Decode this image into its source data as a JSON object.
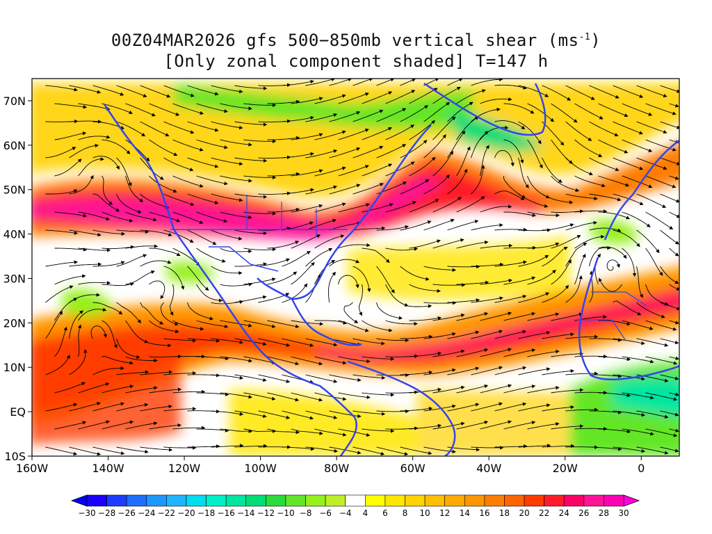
{
  "title": {
    "line1_prefix": "00Z04MAR2026 gfs 500−850mb vertical shear (ms",
    "line1_sup": "-1",
    "line1_suffix": ")",
    "line2": "[Only zonal component shaded] T=147 h"
  },
  "map": {
    "lon_range": [
      -160,
      10
    ],
    "lat_range": [
      -10,
      75
    ],
    "coastline_color": "#3344ee",
    "streamline_color": "#000000"
  },
  "axes": {
    "x_ticks": [
      {
        "lon": -160,
        "label": "160W"
      },
      {
        "lon": -140,
        "label": "140W"
      },
      {
        "lon": -120,
        "label": "120W"
      },
      {
        "lon": -100,
        "label": "100W"
      },
      {
        "lon": -80,
        "label": "80W"
      },
      {
        "lon": -60,
        "label": "60W"
      },
      {
        "lon": -40,
        "label": "40W"
      },
      {
        "lon": -20,
        "label": "20W"
      },
      {
        "lon": 0,
        "label": "0"
      }
    ],
    "y_ticks": [
      {
        "lat": 70,
        "label": "70N"
      },
      {
        "lat": 60,
        "label": "60N"
      },
      {
        "lat": 50,
        "label": "50N"
      },
      {
        "lat": 40,
        "label": "40N"
      },
      {
        "lat": 30,
        "label": "30N"
      },
      {
        "lat": 20,
        "label": "20N"
      },
      {
        "lat": 10,
        "label": "10N"
      },
      {
        "lat": 0,
        "label": "EQ"
      },
      {
        "lat": -10,
        "label": "10S"
      }
    ]
  },
  "colorbar": {
    "labels": [
      "-30",
      "-28",
      "-26",
      "-24",
      "-22",
      "-20",
      "-18",
      "-16",
      "-14",
      "-12",
      "-10",
      "-8",
      "-6",
      "-4",
      "4",
      "6",
      "8",
      "10",
      "12",
      "14",
      "16",
      "18",
      "20",
      "22",
      "24",
      "26",
      "28",
      "30"
    ],
    "colors": [
      "#1a00ff",
      "#1e3cff",
      "#1e6eff",
      "#1e96ff",
      "#1eb4ff",
      "#00dcf0",
      "#00f0c8",
      "#00e6a0",
      "#00dc78",
      "#28dc3c",
      "#64e628",
      "#96f01e",
      "#beee28",
      "#ffffff",
      "#ffff00",
      "#ffe600",
      "#ffd200",
      "#ffbe00",
      "#ffaa00",
      "#ff9600",
      "#ff7d00",
      "#ff6400",
      "#ff3c00",
      "#ff1e28",
      "#ff0064",
      "#ff1496",
      "#ff00b4"
    ],
    "low_color": "#0000ff",
    "high_color": "#ff00dc"
  }
}
